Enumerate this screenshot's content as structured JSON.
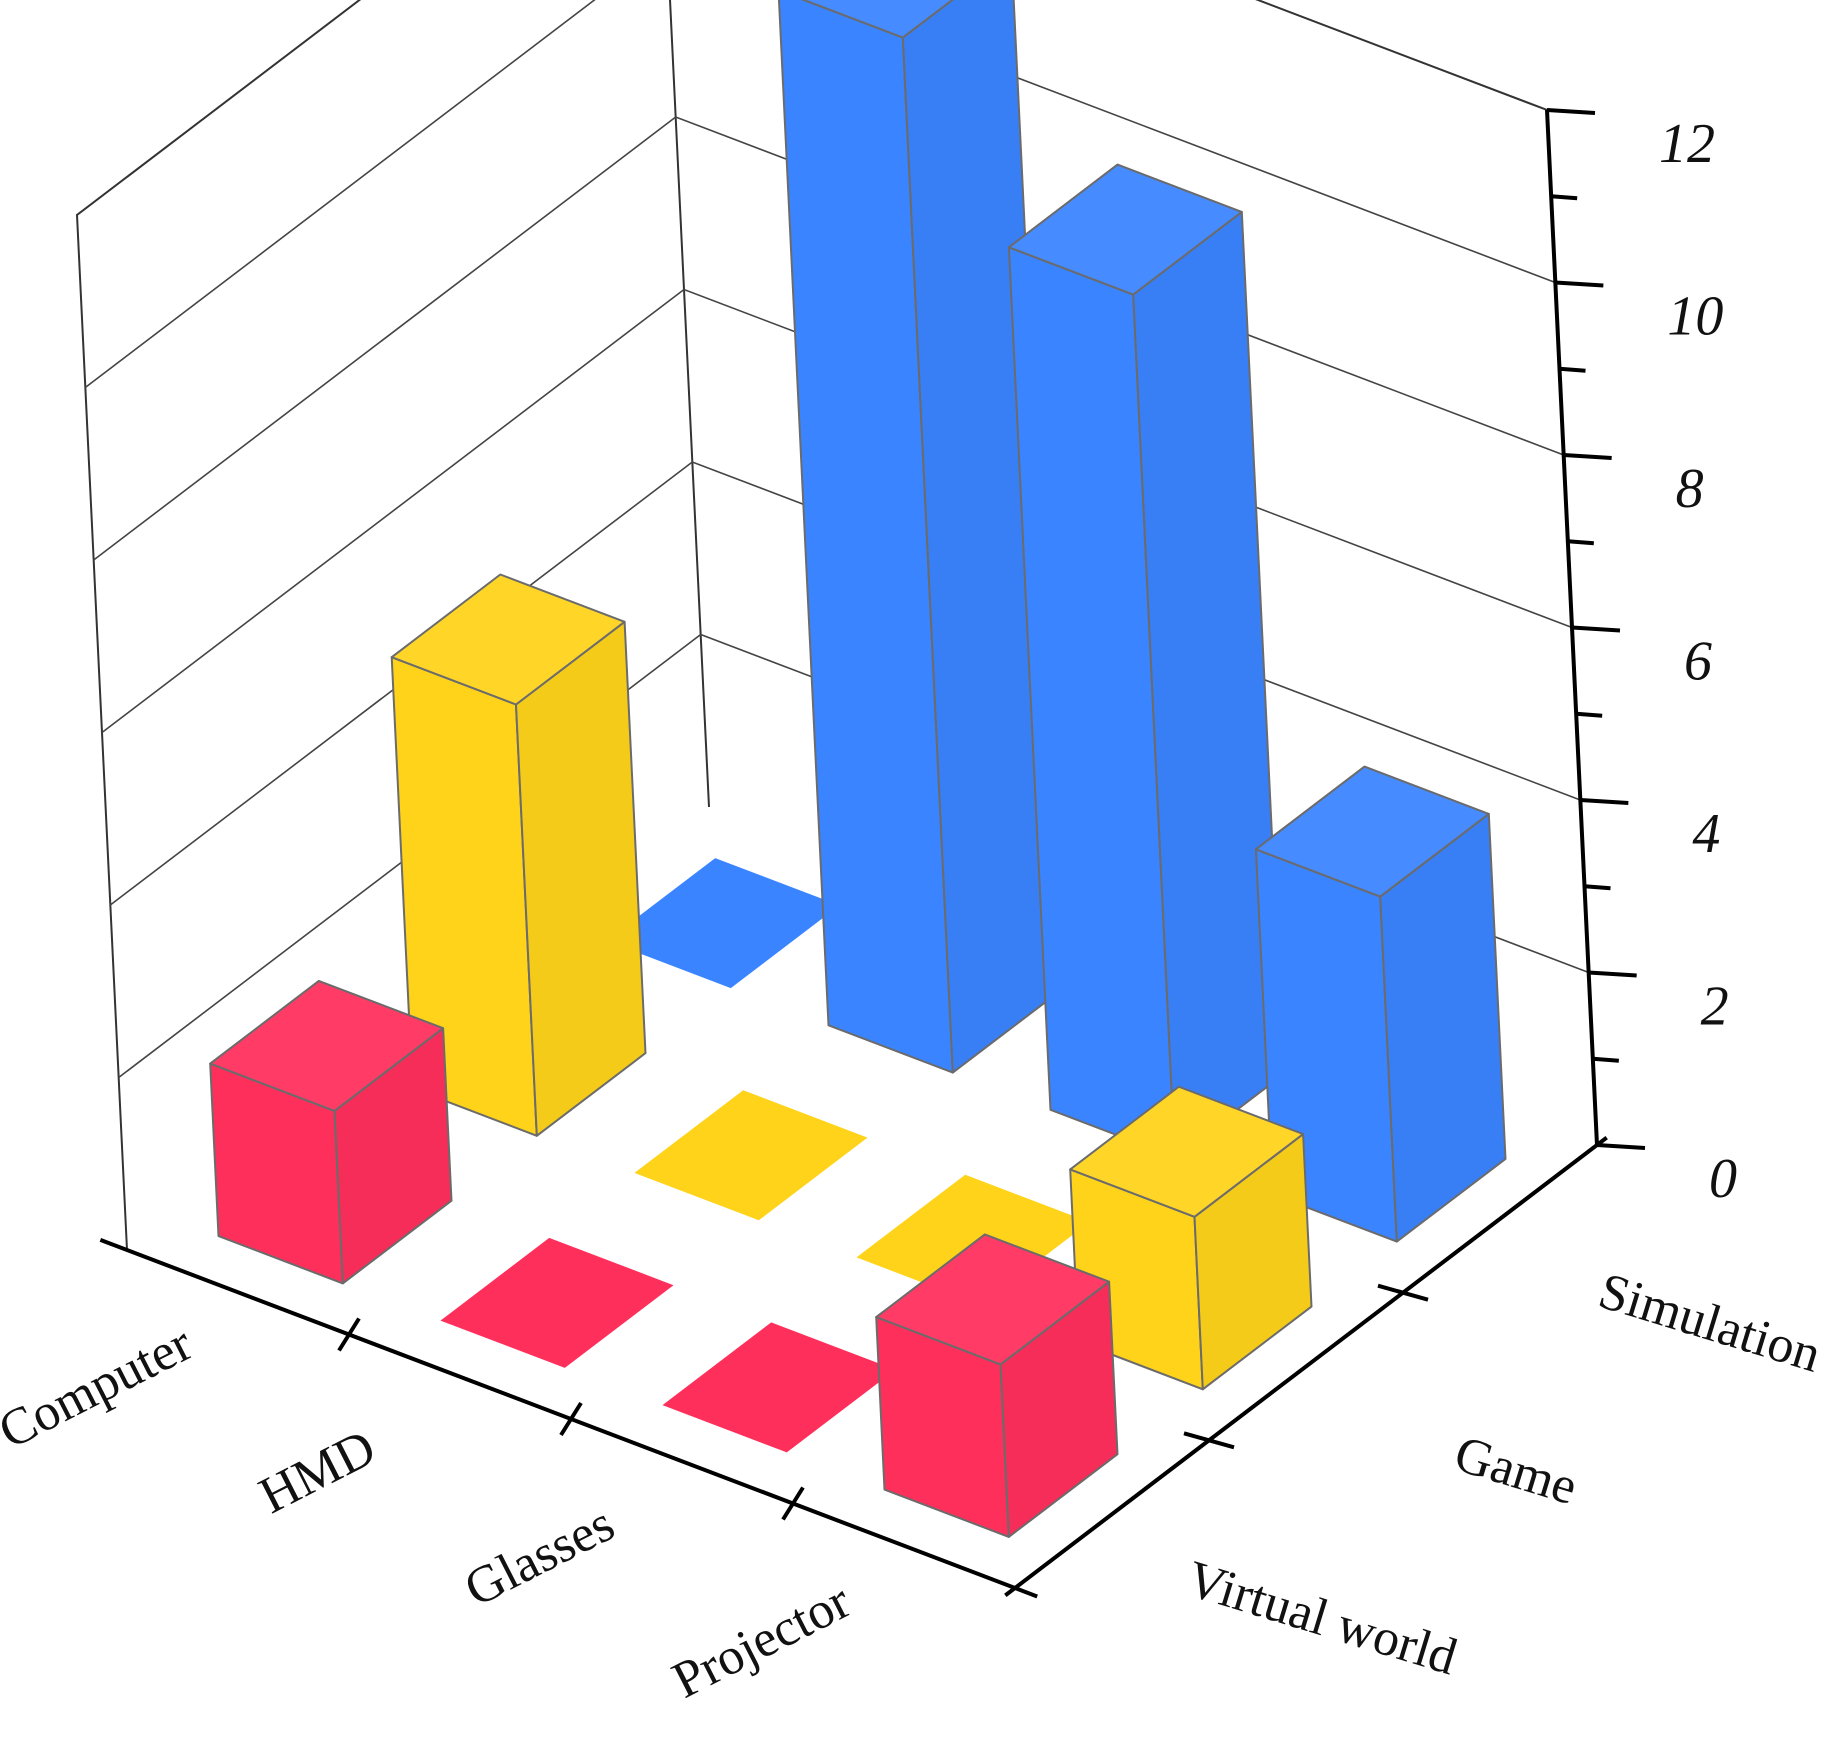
{
  "chart_data": {
    "type": "bar3d",
    "title": "",
    "x_categories": [
      "Computer",
      "HMD",
      "Glasses",
      "Projector"
    ],
    "y_categories": [
      "Virtual world",
      "Game",
      "Simulation"
    ],
    "z_ticks": [
      0,
      2,
      4,
      6,
      8,
      10,
      12
    ],
    "z_minor_ticks": [
      1,
      3,
      5,
      7,
      9,
      11
    ],
    "zlim": [
      0,
      12
    ],
    "grid": true,
    "series": [
      {
        "category": "Virtual world",
        "color": "#ff2f5c",
        "values": [
          2,
          0,
          0,
          2
        ]
      },
      {
        "category": "Game",
        "color": "#ffd31a",
        "values": [
          5,
          0,
          0,
          2
        ]
      },
      {
        "category": "Simulation",
        "color": "#3a84ff",
        "values": [
          0,
          12,
          10,
          4
        ]
      }
    ]
  }
}
